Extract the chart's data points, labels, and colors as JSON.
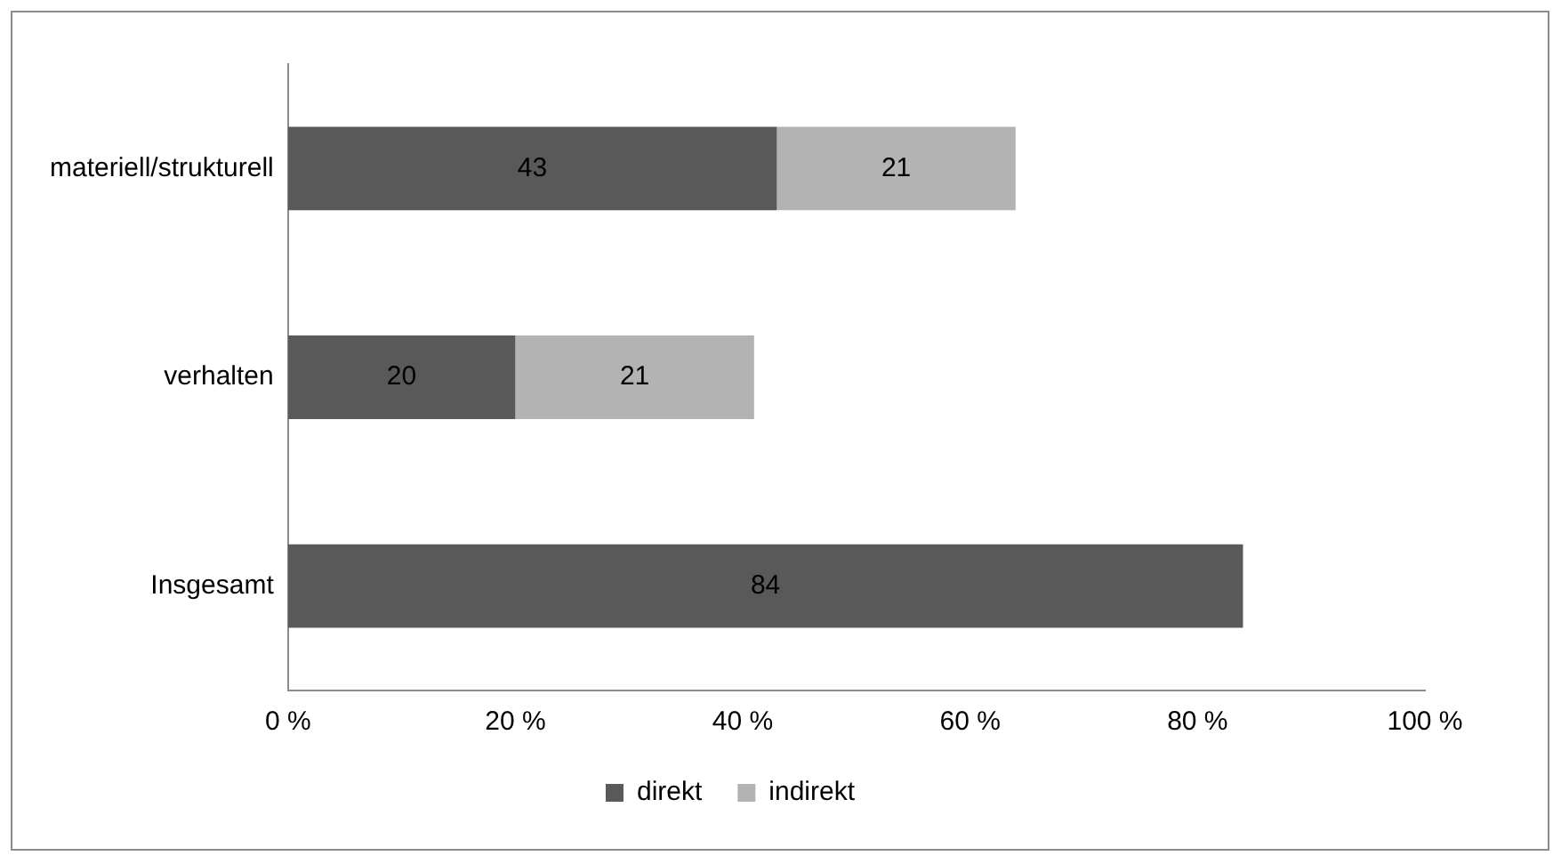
{
  "chart_data": {
    "type": "bar",
    "orientation": "horizontal",
    "stacked": true,
    "categories": [
      "materiell/strukturell",
      "verhalten",
      "Insgesamt"
    ],
    "series": [
      {
        "name": "direkt",
        "color": "#595959",
        "values": [
          43,
          20,
          84
        ]
      },
      {
        "name": "indirekt",
        "color": "#b3b3b3",
        "values": [
          21,
          21,
          null
        ]
      }
    ],
    "xlim": [
      0,
      100
    ],
    "xticks": [
      {
        "value": 0,
        "label": "0 %"
      },
      {
        "value": 20,
        "label": "20 %"
      },
      {
        "value": 40,
        "label": "40 %"
      },
      {
        "value": 60,
        "label": "60 %"
      },
      {
        "value": 80,
        "label": "80 %"
      },
      {
        "value": 100,
        "label": "100 %"
      }
    ],
    "grid": false,
    "legend": "bottom",
    "data_labels": true
  }
}
